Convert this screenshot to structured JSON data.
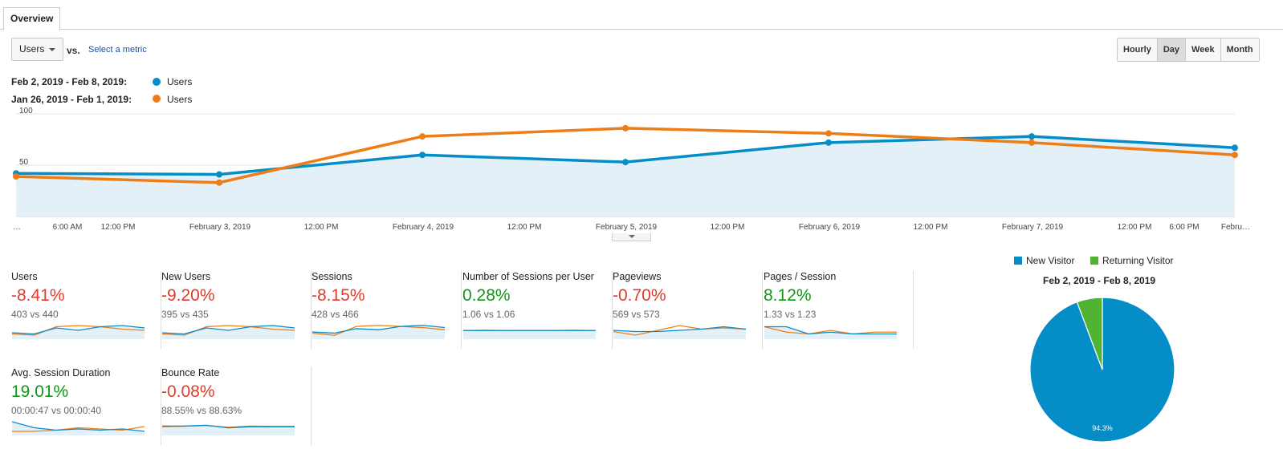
{
  "tabs": {
    "active": "Overview"
  },
  "metric_selector": {
    "value": "Users",
    "vs": "vs.",
    "select_metric": "Select a metric"
  },
  "granularity": {
    "buttons": [
      "Hourly",
      "Day",
      "Week",
      "Month"
    ],
    "active": "Day"
  },
  "legend": [
    {
      "range": "Feb 2, 2019 - Feb 8, 2019:",
      "label": "Users",
      "color": "#058dc7"
    },
    {
      "range": "Jan 26, 2019 - Feb 1, 2019:",
      "label": "Users",
      "color": "#ed7e17"
    }
  ],
  "chart_data": {
    "type": "line",
    "ylim": [
      0,
      100
    ],
    "yticks": [
      100,
      50
    ],
    "xticks": [
      "…",
      "6:00 AM",
      "12:00 PM",
      "February 3, 2019",
      "12:00 PM",
      "February 4, 2019",
      "12:00 PM",
      "February 5, 2019",
      "12:00 PM",
      "February 6, 2019",
      "12:00 PM",
      "February 7, 2019",
      "12:00 PM",
      "6:00 PM",
      "Febru…"
    ],
    "series": [
      {
        "name": "Users",
        "range": "Feb 2, 2019 - Feb 8, 2019",
        "color": "#058dc7",
        "values": [
          42,
          41,
          60,
          53,
          72,
          78,
          67
        ],
        "area": true
      },
      {
        "name": "Users",
        "range": "Jan 26, 2019 - Feb 1, 2019",
        "color": "#ed7e17",
        "values": [
          39,
          33,
          78,
          86,
          81,
          72,
          60
        ]
      }
    ]
  },
  "scorecards": [
    {
      "title": "Users",
      "pct": "-8.41%",
      "trend": "neg",
      "cmp": "403 vs 440",
      "spark": {
        "cur": [
          3,
          2,
          7,
          5,
          8,
          9,
          7
        ],
        "prev": [
          2,
          1,
          8,
          9,
          8,
          6,
          5
        ]
      }
    },
    {
      "title": "New Users",
      "pct": "-9.20%",
      "trend": "neg",
      "cmp": "395 vs 435",
      "spark": {
        "cur": [
          3,
          2,
          7,
          5,
          8,
          9,
          7
        ],
        "prev": [
          2,
          1,
          8,
          9,
          8,
          6,
          5
        ]
      }
    },
    {
      "title": "Sessions",
      "pct": "-8.15%",
      "trend": "neg",
      "cmp": "428 vs 466",
      "spark": {
        "cur": [
          3,
          2,
          6,
          5,
          8,
          9,
          7
        ],
        "prev": [
          2,
          0,
          8,
          9,
          8,
          7,
          5
        ]
      }
    },
    {
      "title": "Number of Sessions per User",
      "pct": "0.28%",
      "trend": "pos",
      "cmp": "1.06 vs 1.06",
      "spark": {
        "cur": [
          5,
          5,
          5,
          5,
          5,
          5,
          5
        ],
        "prev": [
          5,
          5.1,
          5,
          5,
          5,
          5.1,
          5
        ]
      }
    },
    {
      "title": "Pageviews",
      "pct": "-0.70%",
      "trend": "neg",
      "cmp": "569 vs 573",
      "spark": {
        "cur": [
          5,
          4,
          4,
          5,
          6,
          8,
          6
        ],
        "prev": [
          4,
          1,
          5,
          9,
          6,
          7,
          6
        ]
      }
    },
    {
      "title": "Pages / Session",
      "pct": "8.12%",
      "trend": "pos",
      "cmp": "1.33 vs 1.23",
      "spark": {
        "cur": [
          9,
          9,
          5,
          6,
          5,
          5,
          5
        ],
        "prev": [
          9,
          6,
          5,
          7,
          5,
          6,
          6
        ]
      }
    },
    {
      "title": "Avg. Session Duration",
      "pct": "19.01%",
      "trend": "pos",
      "cmp": "00:00:47 vs 00:00:40",
      "spark": {
        "cur": [
          9,
          4,
          2,
          3,
          2,
          3,
          1
        ],
        "prev": [
          1,
          1,
          2,
          4,
          3,
          2,
          5
        ]
      }
    },
    {
      "title": "Bounce Rate",
      "pct": "-0.08%",
      "trend": "neg",
      "cmp": "88.55% vs 88.63%",
      "spark": {
        "cur": [
          9,
          9,
          9.3,
          8.4,
          8.8,
          8.8,
          8.8
        ],
        "prev": [
          8.8,
          9,
          9.2,
          8.6,
          9,
          8.9,
          8.9
        ]
      }
    }
  ],
  "pie": {
    "title": "Feb 2, 2019 - Feb 8, 2019",
    "legend": [
      {
        "label": "New Visitor",
        "color": "#058dc7"
      },
      {
        "label": "Returning Visitor",
        "color": "#50b432"
      }
    ],
    "slices": [
      {
        "label": "New Visitor",
        "value": 94.3,
        "color": "#058dc7"
      },
      {
        "label": "Returning Visitor",
        "value": 5.7,
        "color": "#50b432"
      }
    ],
    "data_label": "94.3%"
  }
}
